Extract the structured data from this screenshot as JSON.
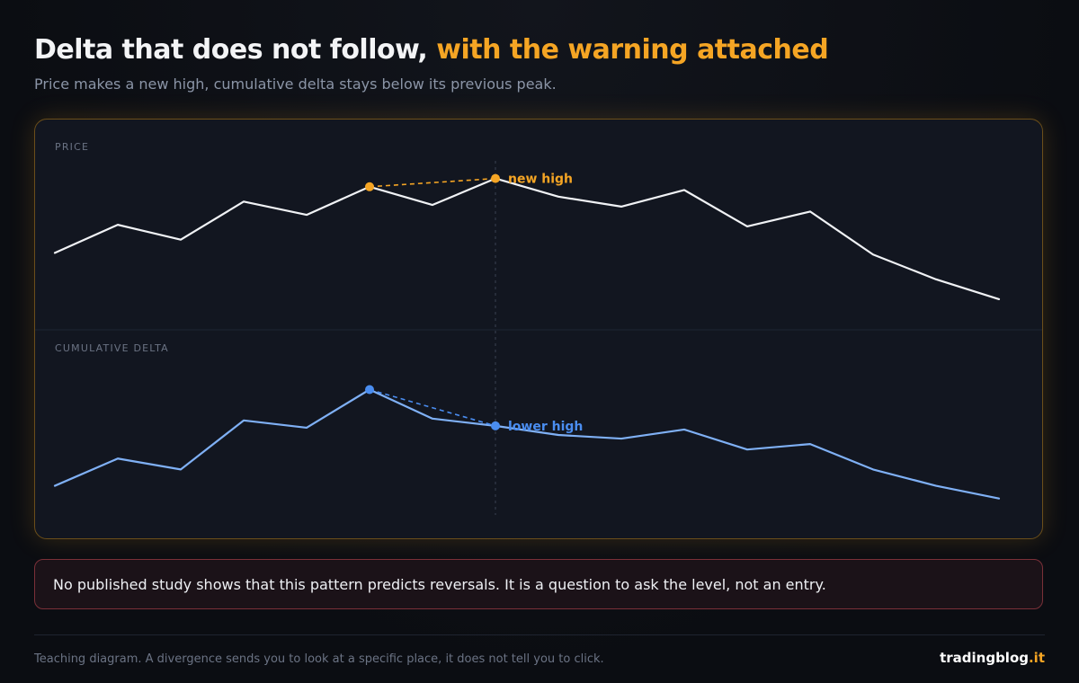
{
  "header": {
    "title_main": "Delta that does not follow,",
    "title_accent": "with the warning attached",
    "subtitle": "Price makes a new high, cumulative delta stays below its previous peak."
  },
  "chart_data": [
    {
      "type": "line",
      "panel_label": "PRICE",
      "series": [
        {
          "values": [
            100,
            117,
            108,
            131,
            123,
            140,
            129,
            145,
            134,
            128,
            138,
            116,
            125,
            99,
            84,
            72
          ]
        }
      ],
      "ylim": [
        60,
        160
      ],
      "markers": [
        {
          "index": 5,
          "value": 140,
          "label": ""
        },
        {
          "index": 7,
          "value": 145,
          "label": "new high"
        }
      ],
      "connector": {
        "from": 5,
        "to": 7,
        "style": "dashed"
      },
      "color": "#f0f2f5",
      "marker_color": "#f5a524"
    },
    {
      "type": "line",
      "panel_label": "CUMULATIVE DELTA",
      "series": [
        {
          "values": [
            22,
            37,
            31,
            58,
            54,
            75,
            59,
            55,
            50,
            48,
            53,
            42,
            45,
            31,
            22,
            15
          ]
        }
      ],
      "ylim": [
        0,
        100
      ],
      "markers": [
        {
          "index": 5,
          "value": 75,
          "label": ""
        },
        {
          "index": 7,
          "value": 55,
          "label": "lower high"
        }
      ],
      "connector": {
        "from": 5,
        "to": 7,
        "style": "dashed"
      },
      "color": "#7fb0f5",
      "marker_color": "#4a8df0"
    }
  ],
  "warning": {
    "text": "No published study shows that this pattern predicts reversals. It is a question to ask the level, not an entry."
  },
  "footer": {
    "note": "Teaching diagram. A divergence sends you to look at a specific place, it does not tell you to click.",
    "brand_main": "tradingblog",
    "brand_tld": ".it"
  },
  "colors": {
    "accent": "#f5a524",
    "delta": "#7fb0f5",
    "delta_marker": "#4a8df0",
    "price": "#f0f2f5",
    "warning_border": "#7a3038"
  }
}
